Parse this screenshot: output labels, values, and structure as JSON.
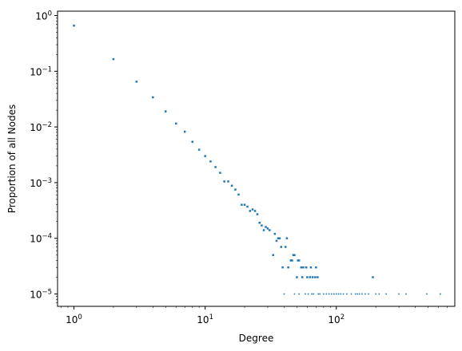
{
  "chart_data": {
    "type": "scatter",
    "title": "",
    "xlabel": "Degree",
    "ylabel": "Proportion of all Nodes",
    "xscale": "log",
    "yscale": "log",
    "xlim": [
      0.75,
      800
    ],
    "ylim": [
      6e-06,
      1.2
    ],
    "grid": false,
    "color": "#1f77b4",
    "x_ticks": [
      {
        "value": 1,
        "base": "10",
        "exp": "0"
      },
      {
        "value": 10,
        "base": "10",
        "exp": "1"
      },
      {
        "value": 100,
        "base": "10",
        "exp": "2"
      }
    ],
    "y_ticks": [
      {
        "value": 1e-05,
        "base": "10",
        "exp": "−5"
      },
      {
        "value": 0.0001,
        "base": "10",
        "exp": "−4"
      },
      {
        "value": 0.001,
        "base": "10",
        "exp": "−3"
      },
      {
        "value": 0.01,
        "base": "10",
        "exp": "−2"
      },
      {
        "value": 0.1,
        "base": "10",
        "exp": "−1"
      },
      {
        "value": 1,
        "base": "10",
        "exp": "0"
      }
    ],
    "points": [
      [
        1,
        0.66
      ],
      [
        2,
        0.165
      ],
      [
        3,
        0.065
      ],
      [
        4,
        0.034
      ],
      [
        5,
        0.019
      ],
      [
        6,
        0.0115
      ],
      [
        7,
        0.0082
      ],
      [
        8,
        0.0054
      ],
      [
        9,
        0.0039
      ],
      [
        10,
        0.003
      ],
      [
        11,
        0.0024
      ],
      [
        12,
        0.0019
      ],
      [
        13,
        0.0015
      ],
      [
        14,
        0.00105
      ],
      [
        15,
        0.00105
      ],
      [
        16,
        0.00088
      ],
      [
        17,
        0.00075
      ],
      [
        18,
        0.00061
      ],
      [
        19,
        0.0004
      ],
      [
        20,
        0.0004
      ],
      [
        21,
        0.00037
      ],
      [
        22,
        0.00031
      ],
      [
        23,
        0.00033
      ],
      [
        24,
        0.00031
      ],
      [
        25,
        0.00027
      ],
      [
        26,
        0.00019
      ],
      [
        27,
        0.00017
      ],
      [
        28,
        0.00014
      ],
      [
        29,
        0.00016
      ],
      [
        30,
        0.00015
      ],
      [
        31,
        0.00014
      ],
      [
        33,
        5e-05
      ],
      [
        34,
        0.00012
      ],
      [
        35,
        9e-05
      ],
      [
        36,
        0.0001
      ],
      [
        37,
        0.0001
      ],
      [
        38,
        7e-05
      ],
      [
        39,
        3e-05
      ],
      [
        41,
        7e-05
      ],
      [
        42,
        0.0001
      ],
      [
        43,
        3e-05
      ],
      [
        45,
        4e-05
      ],
      [
        46,
        4e-05
      ],
      [
        47,
        5e-05
      ],
      [
        48,
        5e-05
      ],
      [
        50,
        2e-05
      ],
      [
        51,
        4e-05
      ],
      [
        52,
        4e-05
      ],
      [
        54,
        3e-05
      ],
      [
        55,
        2e-05
      ],
      [
        56,
        3e-05
      ],
      [
        59,
        3e-05
      ],
      [
        60,
        2e-05
      ],
      [
        63,
        2e-05
      ],
      [
        64,
        3e-05
      ],
      [
        66,
        2e-05
      ],
      [
        69,
        2e-05
      ],
      [
        70,
        3e-05
      ],
      [
        72,
        2e-05
      ],
      [
        190,
        2e-05
      ],
      [
        40,
        1e-05
      ],
      [
        48,
        1e-05
      ],
      [
        52,
        1e-05
      ],
      [
        58,
        1e-05
      ],
      [
        61,
        1e-05
      ],
      [
        65,
        1e-05
      ],
      [
        67,
        1e-05
      ],
      [
        73,
        1e-05
      ],
      [
        75,
        1e-05
      ],
      [
        80,
        1e-05
      ],
      [
        84,
        1e-05
      ],
      [
        88,
        1e-05
      ],
      [
        92,
        1e-05
      ],
      [
        96,
        1e-05
      ],
      [
        100,
        1e-05
      ],
      [
        104,
        1e-05
      ],
      [
        108,
        1e-05
      ],
      [
        113,
        1e-05
      ],
      [
        120,
        1e-05
      ],
      [
        130,
        1e-05
      ],
      [
        140,
        1e-05
      ],
      [
        145,
        1e-05
      ],
      [
        150,
        1e-05
      ],
      [
        157,
        1e-05
      ],
      [
        166,
        1e-05
      ],
      [
        176,
        1e-05
      ],
      [
        200,
        1e-05
      ],
      [
        212,
        1e-05
      ],
      [
        240,
        1e-05
      ],
      [
        300,
        1e-05
      ],
      [
        340,
        1e-05
      ],
      [
        490,
        1e-05
      ],
      [
        620,
        1e-05
      ]
    ]
  }
}
